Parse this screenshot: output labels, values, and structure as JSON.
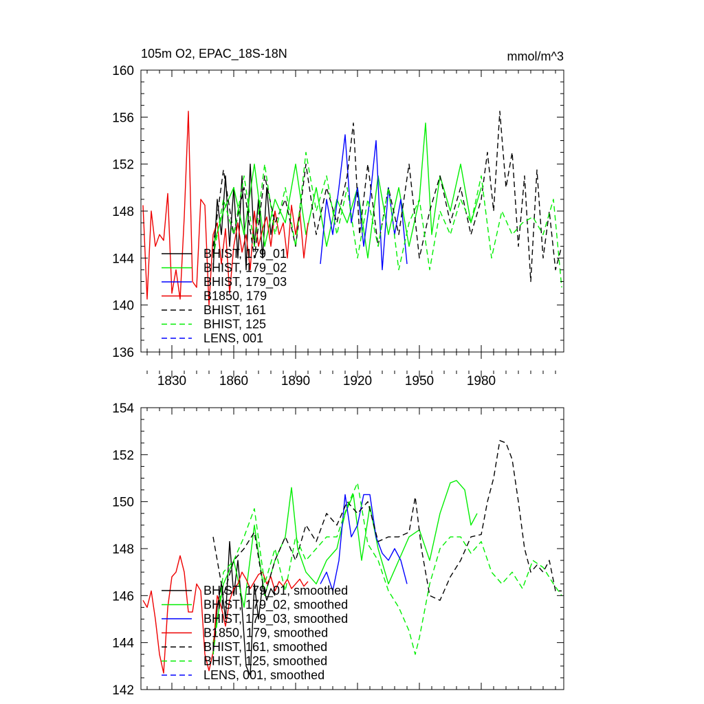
{
  "chart_data": [
    {
      "type": "line",
      "title": "105m O2, EPAC_18S-18N",
      "units": "mmol/m^3",
      "xlabel": "",
      "ylabel": "",
      "xlim": [
        1815,
        2020
      ],
      "ylim": [
        136,
        160
      ],
      "xticks": [
        1830,
        1860,
        1890,
        1920,
        1950,
        1980
      ],
      "xtick_labels": [
        "1830",
        "1860",
        "1890",
        "1920",
        "1950",
        "1980"
      ],
      "yticks": [
        136,
        140,
        144,
        148,
        152,
        156,
        160
      ],
      "ytick_labels": [
        "136",
        "140",
        "144",
        "148",
        "152",
        "156",
        "160"
      ],
      "legend_position": "bottom-left",
      "series": [
        {
          "name": "BHIST, 179_01",
          "color": "#000000",
          "dash": "solid",
          "x": [
            1850,
            1852,
            1854,
            1856,
            1858,
            1860,
            1862,
            1864,
            1866,
            1868,
            1870,
            1872,
            1874,
            1876,
            1878,
            1880
          ],
          "y": [
            143,
            149,
            146,
            151,
            145,
            150,
            144,
            151,
            143,
            152,
            145,
            149,
            144,
            150,
            146,
            148
          ]
        },
        {
          "name": "BHIST, 179_02",
          "color": "#00ee00",
          "dash": "solid",
          "x": [
            1850,
            1855,
            1860,
            1865,
            1870,
            1875,
            1880,
            1885,
            1890,
            1895,
            1900,
            1905,
            1910,
            1915,
            1920,
            1925,
            1930,
            1935,
            1940,
            1945,
            1950,
            1953,
            1956,
            1960,
            1965,
            1970,
            1975,
            1980
          ],
          "y": [
            145,
            148,
            150,
            146,
            152,
            145,
            149,
            147,
            152,
            146,
            150,
            145,
            149,
            147,
            150,
            144,
            151,
            146,
            150,
            145,
            149,
            155.5,
            146,
            151,
            148,
            152,
            147,
            150
          ]
        },
        {
          "name": "BHIST, 179_03",
          "color": "#0000ff",
          "dash": "solid",
          "x": [
            1902,
            1905,
            1908,
            1911,
            1914,
            1917,
            1920,
            1923,
            1926,
            1929,
            1932,
            1935,
            1938,
            1941,
            1944
          ],
          "y": [
            143.5,
            149,
            146,
            150,
            154.5,
            147,
            150,
            145,
            149,
            154,
            143,
            150,
            146,
            149,
            143.5
          ]
        },
        {
          "name": "B1850, 179",
          "color": "#ee0000",
          "dash": "solid",
          "x": [
            1816,
            1818,
            1820,
            1822,
            1824,
            1826,
            1828,
            1830,
            1832,
            1834,
            1836,
            1838,
            1840,
            1842,
            1844,
            1846,
            1848,
            1850,
            1852,
            1854,
            1856,
            1858,
            1860,
            1862,
            1864,
            1866,
            1868,
            1870,
            1872,
            1874,
            1876,
            1878,
            1880,
            1882,
            1884,
            1886,
            1888,
            1890,
            1892,
            1894,
            1896
          ],
          "y": [
            148.5,
            140.5,
            148,
            145,
            146,
            145.5,
            149.5,
            141,
            143,
            140.5,
            147.5,
            156.5,
            142,
            141.5,
            149,
            148.5,
            140,
            146,
            147,
            143.5,
            146.5,
            141,
            145,
            147,
            144.5,
            146,
            143,
            148,
            145,
            146.5,
            147.5,
            145,
            148,
            146,
            147,
            144,
            148.5,
            146,
            148,
            144,
            147
          ]
        },
        {
          "name": "BHIST, 161",
          "color": "#000000",
          "dash": "dashed",
          "x": [
            1850,
            1855,
            1860,
            1865,
            1870,
            1875,
            1880,
            1885,
            1890,
            1895,
            1900,
            1905,
            1910,
            1915,
            1918,
            1921,
            1925,
            1930,
            1935,
            1940,
            1945,
            1950,
            1955,
            1960,
            1965,
            1970,
            1975,
            1980,
            1983,
            1986,
            1989,
            1992,
            1995,
            1998,
            2001,
            2004,
            2007,
            2010,
            2013,
            2016,
            2019
          ],
          "y": [
            145,
            151.5,
            146,
            150,
            144,
            151,
            147,
            149,
            145,
            152,
            146,
            150,
            147,
            151,
            155.5,
            146,
            152,
            145,
            150,
            146,
            152,
            144,
            148,
            151,
            147,
            150,
            146,
            149,
            153,
            148,
            156.5,
            150,
            153,
            145,
            151,
            142,
            151.5,
            144,
            148,
            143,
            145
          ]
        },
        {
          "name": "BHIST, 125",
          "color": "#00ee00",
          "dash": "dashed",
          "x": [
            1850,
            1855,
            1860,
            1865,
            1870,
            1875,
            1880,
            1885,
            1890,
            1895,
            1900,
            1905,
            1910,
            1915,
            1920,
            1925,
            1930,
            1935,
            1940,
            1945,
            1950,
            1955,
            1960,
            1965,
            1970,
            1975,
            1980,
            1985,
            1990,
            1995,
            2000,
            2005,
            2010,
            2015,
            2019
          ],
          "y": [
            144,
            149,
            146,
            151,
            145,
            152,
            146,
            150,
            145,
            153,
            148,
            151,
            146,
            150,
            144,
            149,
            145,
            150,
            143,
            147,
            149,
            143,
            148,
            146,
            149,
            147,
            151,
            144,
            148,
            146,
            147,
            147.5,
            146,
            149,
            141.5
          ]
        },
        {
          "name": "LENS, 001",
          "color": "#0000ff",
          "dash": "dashed",
          "x": [],
          "y": []
        }
      ]
    },
    {
      "type": "line",
      "title": "",
      "xlabel": "",
      "ylabel": "",
      "xlim": [
        1815,
        2020
      ],
      "ylim": [
        142,
        154
      ],
      "xticks": [
        1830,
        1860,
        1890,
        1920,
        1950,
        1980
      ],
      "xtick_labels": [],
      "yticks": [
        142,
        144,
        146,
        148,
        150,
        152,
        154
      ],
      "ytick_labels": [
        "142",
        "144",
        "146",
        "148",
        "150",
        "152",
        "154"
      ],
      "legend_position": "bottom-left",
      "series": [
        {
          "name": "BHIST, 179_01, smoothed",
          "color": "#000000",
          "dash": "solid",
          "x": [
            1850,
            1852,
            1854,
            1856,
            1858,
            1860,
            1862,
            1864,
            1866,
            1868,
            1870,
            1872,
            1874,
            1876,
            1878,
            1880
          ],
          "y": [
            143.5,
            145.5,
            146.5,
            145,
            148.3,
            146,
            147.5,
            145.5,
            143,
            142.6,
            146.5,
            145,
            146.5,
            145.8,
            146.3,
            146
          ]
        },
        {
          "name": "BHIST, 179_02, smoothed",
          "color": "#00ee00",
          "dash": "solid",
          "x": [
            1850,
            1855,
            1860,
            1865,
            1870,
            1875,
            1880,
            1885,
            1888,
            1891,
            1895,
            1900,
            1905,
            1910,
            1914,
            1918,
            1922,
            1926,
            1930,
            1935,
            1940,
            1945,
            1950,
            1955,
            1960,
            1965,
            1968,
            1972,
            1975,
            1978
          ],
          "y": [
            144,
            146.5,
            147.5,
            145.5,
            149,
            146,
            147.5,
            148.5,
            150.6,
            148,
            147,
            146.5,
            147.5,
            148,
            149.5,
            150.3,
            147.5,
            149.8,
            148,
            146.5,
            147.5,
            148.5,
            148.8,
            147.5,
            149.5,
            150.8,
            150.9,
            150.5,
            149,
            149.5
          ]
        },
        {
          "name": "BHIST, 179_03, smoothed",
          "color": "#0000ff",
          "dash": "solid",
          "x": [
            1902,
            1905,
            1908,
            1911,
            1914,
            1917,
            1920,
            1923,
            1926,
            1929,
            1932,
            1935,
            1938,
            1941,
            1944
          ],
          "y": [
            146.5,
            147,
            146.2,
            147.5,
            150.3,
            148.5,
            149,
            150.3,
            150.3,
            148.5,
            147.8,
            147.5,
            148,
            147.5,
            146.5
          ]
        },
        {
          "name": "B1850, 179, smoothed",
          "color": "#ee0000",
          "dash": "solid",
          "x": [
            1816,
            1818,
            1820,
            1822,
            1824,
            1826,
            1828,
            1830,
            1832,
            1834,
            1836,
            1838,
            1840,
            1842,
            1844,
            1846,
            1848,
            1850,
            1852,
            1854,
            1856,
            1858,
            1860,
            1862,
            1864,
            1866,
            1868,
            1870,
            1872,
            1874,
            1876,
            1878,
            1880,
            1882,
            1884,
            1886,
            1888,
            1890,
            1892,
            1894,
            1896
          ],
          "y": [
            145.8,
            145.5,
            146.2,
            145,
            143.5,
            142.7,
            145.5,
            146.8,
            147,
            147.7,
            147,
            145.3,
            145.3,
            146.5,
            146.2,
            143.5,
            142.8,
            143.6,
            146,
            145.5,
            144.7,
            145.8,
            146.3,
            146.5,
            147,
            146.7,
            146.3,
            146.6,
            146.9,
            147,
            146.5,
            146.8,
            146.2,
            146.6,
            146.4,
            146.7,
            146.3,
            146.5,
            146.7,
            146.4,
            146.6
          ]
        },
        {
          "name": "BHIST, 161, smoothed",
          "color": "#000000",
          "dash": "dashed",
          "x": [
            1850,
            1855,
            1860,
            1865,
            1870,
            1875,
            1880,
            1885,
            1890,
            1895,
            1900,
            1905,
            1910,
            1915,
            1920,
            1925,
            1930,
            1935,
            1940,
            1945,
            1948,
            1951,
            1955,
            1960,
            1965,
            1970,
            1975,
            1980,
            1983,
            1986,
            1989,
            1992,
            1995,
            1998,
            2001,
            2004,
            2007,
            2010,
            2013,
            2016,
            2019
          ],
          "y": [
            148.5,
            146,
            147.5,
            148,
            148.7,
            146,
            147.5,
            148.5,
            147.5,
            149,
            148.3,
            149.5,
            149,
            150,
            149.5,
            150,
            148.3,
            148.5,
            148.5,
            148.7,
            150.2,
            148,
            146,
            145.8,
            146.8,
            147.5,
            148.5,
            148.6,
            150,
            151,
            152.6,
            152.5,
            151.8,
            150,
            148,
            147,
            147.3,
            147,
            147.5,
            146.2,
            146.2
          ]
        },
        {
          "name": "BHIST, 125, smoothed",
          "color": "#00ee00",
          "dash": "dashed",
          "x": [
            1850,
            1855,
            1860,
            1865,
            1870,
            1875,
            1880,
            1885,
            1890,
            1895,
            1900,
            1905,
            1910,
            1915,
            1920,
            1925,
            1930,
            1935,
            1940,
            1945,
            1948,
            1950,
            1955,
            1960,
            1965,
            1970,
            1975,
            1980,
            1985,
            1990,
            1995,
            2000,
            2005,
            2010,
            2015,
            2019
          ],
          "y": [
            143.5,
            147,
            147.5,
            148.5,
            149.7,
            146.5,
            148,
            146.2,
            148.5,
            147.5,
            148,
            148.5,
            148.5,
            149.8,
            150.8,
            148.2,
            147.5,
            146.2,
            145.5,
            144.5,
            143.5,
            144.2,
            146.5,
            148,
            148.5,
            148.5,
            147.8,
            148.3,
            147,
            146.5,
            147,
            146.3,
            147.5,
            147.2,
            146.5,
            146
          ]
        },
        {
          "name": "LENS, 001, smoothed",
          "color": "#0000ff",
          "dash": "dashed",
          "x": [],
          "y": []
        }
      ]
    }
  ]
}
